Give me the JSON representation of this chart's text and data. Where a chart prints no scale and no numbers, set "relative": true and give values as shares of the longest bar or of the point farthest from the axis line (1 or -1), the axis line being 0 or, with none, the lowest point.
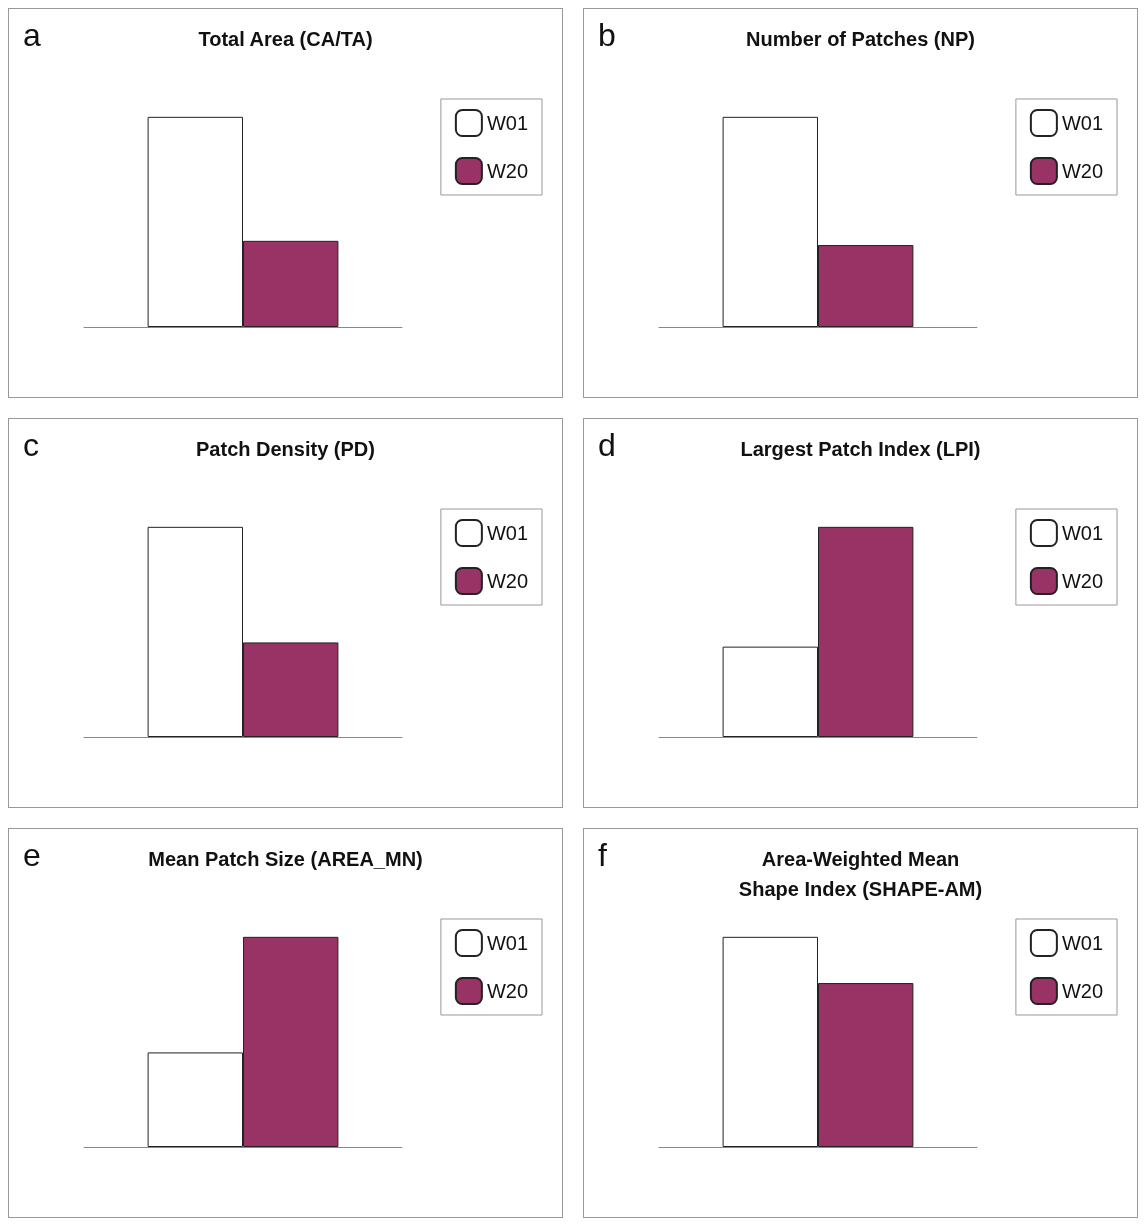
{
  "chart_data": [
    {
      "type": "bar",
      "title": "Total Area (CA/TA)",
      "annotations": [
        "a"
      ],
      "categories": [
        null
      ],
      "relative": true,
      "legend": "right",
      "series": [
        {
          "name": "W01",
          "color": "#ffffff",
          "values": [
            1
          ]
        },
        {
          "name": "W20",
          "color": "#993366",
          "values": [
            0.41
          ]
        }
      ]
    },
    {
      "type": "bar",
      "title": "Number of Patches (NP)",
      "annotations": [
        "b"
      ],
      "categories": [
        null
      ],
      "relative": true,
      "legend": "right",
      "series": [
        {
          "name": "W01",
          "color": "#ffffff",
          "values": [
            1
          ]
        },
        {
          "name": "W20",
          "color": "#993366",
          "values": [
            0.39
          ]
        }
      ]
    },
    {
      "type": "bar",
      "title": "Patch Density (PD)",
      "annotations": [
        "c"
      ],
      "categories": [
        null
      ],
      "relative": true,
      "legend": "right",
      "series": [
        {
          "name": "W01",
          "color": "#ffffff",
          "values": [
            1
          ]
        },
        {
          "name": "W20",
          "color": "#993366",
          "values": [
            0.45
          ]
        }
      ]
    },
    {
      "type": "bar",
      "title": "Largest Patch Index (LPI)",
      "annotations": [
        "d"
      ],
      "categories": [
        null
      ],
      "relative": true,
      "legend": "right",
      "series": [
        {
          "name": "W01",
          "color": "#ffffff",
          "values": [
            0.43
          ]
        },
        {
          "name": "W20",
          "color": "#993366",
          "values": [
            1
          ]
        }
      ]
    },
    {
      "type": "bar",
      "title": "Mean Patch Size (AREA_MN)",
      "annotations": [
        "e"
      ],
      "categories": [
        null
      ],
      "relative": true,
      "legend": "right",
      "series": [
        {
          "name": "W01",
          "color": "#ffffff",
          "values": [
            0.45
          ]
        },
        {
          "name": "W20",
          "color": "#993366",
          "values": [
            1
          ]
        }
      ]
    },
    {
      "type": "bar",
      "title": "Area-Weighted Mean\nShape Index (SHAPE-AM)",
      "annotations": [
        "f"
      ],
      "categories": [
        null
      ],
      "relative": true,
      "legend": "right",
      "series": [
        {
          "name": "W01",
          "color": "#ffffff",
          "values": [
            1
          ]
        },
        {
          "name": "W20",
          "color": "#993366",
          "values": [
            0.78
          ]
        }
      ]
    }
  ]
}
